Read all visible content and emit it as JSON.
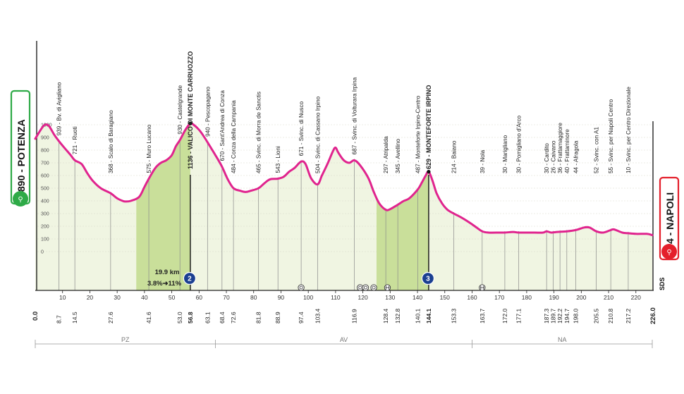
{
  "chart_data": {
    "type": "area",
    "x_unit": "km",
    "y_unit": "m",
    "xlim": [
      0,
      226
    ],
    "ylim": [
      0,
      1200
    ],
    "start": {
      "elevation": "890",
      "name": "POTENZA",
      "label": "890 - POTENZA"
    },
    "finish": {
      "elevation": "4",
      "name": "NAPOLI",
      "label": "4 - NAPOLI"
    },
    "finish_extra": "SDS",
    "y_ticks": [
      "1000",
      "900",
      "800",
      "700",
      "600",
      "500",
      "400",
      "300",
      "200",
      "100",
      "0"
    ],
    "x_ticks": [
      "10",
      "20",
      "30",
      "40",
      "50",
      "60",
      "70",
      "80",
      "90",
      "100",
      "110",
      "120",
      "130",
      "140",
      "150",
      "160",
      "170",
      "180",
      "190",
      "200",
      "210",
      "220"
    ],
    "x_start_label": "0.0",
    "x_end_label": "226.0",
    "profile": [
      [
        0,
        890
      ],
      [
        2,
        960
      ],
      [
        3.5,
        1000
      ],
      [
        5,
        990
      ],
      [
        7,
        920
      ],
      [
        8.7,
        870
      ],
      [
        11,
        810
      ],
      [
        13,
        760
      ],
      [
        14.5,
        720
      ],
      [
        17,
        690
      ],
      [
        19,
        620
      ],
      [
        21,
        560
      ],
      [
        24,
        500
      ],
      [
        27.6,
        460
      ],
      [
        30,
        420
      ],
      [
        32,
        400
      ],
      [
        33,
        395
      ],
      [
        35,
        400
      ],
      [
        38,
        430
      ],
      [
        40,
        510
      ],
      [
        41.6,
        575
      ],
      [
        44,
        660
      ],
      [
        46,
        700
      ],
      [
        48,
        720
      ],
      [
        50,
        760
      ],
      [
        51.5,
        830
      ],
      [
        53,
        880
      ],
      [
        55,
        960
      ],
      [
        56.8,
        1010
      ],
      [
        58,
        1000
      ],
      [
        60,
        960
      ],
      [
        62,
        900
      ],
      [
        64,
        830
      ],
      [
        66,
        760
      ],
      [
        68.4,
        670
      ],
      [
        70.5,
        570
      ],
      [
        72.6,
        500
      ],
      [
        75,
        480
      ],
      [
        77,
        470
      ],
      [
        79,
        480
      ],
      [
        81.8,
        500
      ],
      [
        84,
        540
      ],
      [
        86,
        570
      ],
      [
        88.9,
        575
      ],
      [
        91,
        590
      ],
      [
        93,
        630
      ],
      [
        95,
        660
      ],
      [
        97.4,
        710
      ],
      [
        99,
        690
      ],
      [
        101,
        580
      ],
      [
        103.4,
        530
      ],
      [
        105,
        600
      ],
      [
        107,
        690
      ],
      [
        109,
        790
      ],
      [
        110,
        820
      ],
      [
        111,
        780
      ],
      [
        113,
        720
      ],
      [
        115,
        700
      ],
      [
        116.9,
        720
      ],
      [
        119,
        680
      ],
      [
        122,
        580
      ],
      [
        124,
        470
      ],
      [
        126,
        380
      ],
      [
        128.4,
        330
      ],
      [
        130,
        335
      ],
      [
        132.8,
        370
      ],
      [
        135,
        400
      ],
      [
        137,
        420
      ],
      [
        140.1,
        490
      ],
      [
        141.5,
        540
      ],
      [
        143,
        600
      ],
      [
        144.1,
        630
      ],
      [
        145.5,
        560
      ],
      [
        147,
        460
      ],
      [
        149,
        380
      ],
      [
        151,
        330
      ],
      [
        153.3,
        300
      ],
      [
        156,
        270
      ],
      [
        159,
        230
      ],
      [
        161,
        200
      ],
      [
        163.7,
        160
      ],
      [
        166,
        150
      ],
      [
        170,
        150
      ],
      [
        172,
        150
      ],
      [
        175,
        155
      ],
      [
        177.1,
        150
      ],
      [
        180,
        150
      ],
      [
        183,
        150
      ],
      [
        186,
        150
      ],
      [
        187.3,
        160
      ],
      [
        189,
        150
      ],
      [
        191,
        155
      ],
      [
        194.7,
        160
      ],
      [
        198,
        170
      ],
      [
        201,
        190
      ],
      [
        203,
        190
      ],
      [
        205.5,
        160
      ],
      [
        208,
        150
      ],
      [
        210.8,
        170
      ],
      [
        212,
        175
      ],
      [
        215,
        150
      ],
      [
        217.2,
        145
      ],
      [
        220,
        140
      ],
      [
        224,
        140
      ],
      [
        226,
        130
      ]
    ],
    "distance_labels": [
      {
        "km": 8.7,
        "text": "8.7"
      },
      {
        "km": 14.5,
        "text": "14.5"
      },
      {
        "km": 27.6,
        "text": "27.6"
      },
      {
        "km": 41.6,
        "text": "41.6"
      },
      {
        "km": 53.0,
        "text": "53.0"
      },
      {
        "km": 56.8,
        "text": "56.8",
        "bold": true
      },
      {
        "km": 63.1,
        "text": "63.1"
      },
      {
        "km": 68.4,
        "text": "68.4"
      },
      {
        "km": 72.6,
        "text": "72.6"
      },
      {
        "km": 81.8,
        "text": "81.8"
      },
      {
        "km": 88.9,
        "text": "88.9"
      },
      {
        "km": 97.4,
        "text": "97.4"
      },
      {
        "km": 103.4,
        "text": "103.4"
      },
      {
        "km": 116.9,
        "text": "116.9"
      },
      {
        "km": 128.4,
        "text": "128.4"
      },
      {
        "km": 132.8,
        "text": "132.8"
      },
      {
        "km": 140.1,
        "text": "140.1"
      },
      {
        "km": 144.1,
        "text": "144.1",
        "bold": true
      },
      {
        "km": 153.3,
        "text": "153.3"
      },
      {
        "km": 163.7,
        "text": "163.7"
      },
      {
        "km": 172.0,
        "text": "172.0"
      },
      {
        "km": 177.1,
        "text": "177.1"
      },
      {
        "km": 187.3,
        "text": "187.3"
      },
      {
        "km": 189.7,
        "text": "189.7"
      },
      {
        "km": 192.2,
        "text": "192.2"
      },
      {
        "km": 194.7,
        "text": "194.7"
      },
      {
        "km": 198.0,
        "text": "198.0"
      },
      {
        "km": 205.5,
        "text": "205.5"
      },
      {
        "km": 210.8,
        "text": "210.8"
      },
      {
        "km": 217.2,
        "text": "217.2"
      }
    ],
    "places": [
      {
        "km": 8.7,
        "text": "939 - Bv. di Avigliano"
      },
      {
        "km": 14.5,
        "text": "721 - Ruoti"
      },
      {
        "km": 27.6,
        "text": "368 - Scalo di Baragiano"
      },
      {
        "km": 41.6,
        "text": "575 - Muro Lucano"
      },
      {
        "km": 53.0,
        "text": "930 - Castelgrande"
      },
      {
        "km": 56.8,
        "text": "1136 - VALICO DI MONTE CARRUOZZO",
        "bold": true
      },
      {
        "km": 63.1,
        "text": "940 - Pescopagano"
      },
      {
        "km": 68.4,
        "text": "670 - Sant'Andrea di Conza"
      },
      {
        "km": 72.6,
        "text": "484 - Conza della Campania"
      },
      {
        "km": 81.8,
        "text": "465 - Svinc. di Morra de Sanctis"
      },
      {
        "km": 88.9,
        "text": "543 - Lioni"
      },
      {
        "km": 97.4,
        "text": "671 - Svinc. di Nusco"
      },
      {
        "km": 103.4,
        "text": "504 - Svinc. di Cassano Irpino"
      },
      {
        "km": 116.9,
        "text": "687 - Svinc. di Volturara Irpina"
      },
      {
        "km": 128.4,
        "text": "297 - Atripalda"
      },
      {
        "km": 132.8,
        "text": "345 - Avellino"
      },
      {
        "km": 140.1,
        "text": "487 - Monteforte Irpino-Centro"
      },
      {
        "km": 144.1,
        "text": "629 - MONTEFORTE IRPINO",
        "bold": true
      },
      {
        "km": 153.3,
        "text": "214 - Baiano"
      },
      {
        "km": 163.7,
        "text": "39 - Nola"
      },
      {
        "km": 172.0,
        "text": "30 - Marigliano"
      },
      {
        "km": 177.1,
        "text": "30 - Pomigliano d'Arco"
      },
      {
        "km": 187.3,
        "text": "30 - Cardito"
      },
      {
        "km": 189.7,
        "text": "26 - Caivano"
      },
      {
        "km": 192.2,
        "text": "36 - Frattamaggiore"
      },
      {
        "km": 194.7,
        "text": "40 - Frattaminore"
      },
      {
        "km": 198.0,
        "text": "44 - Afragola"
      },
      {
        "km": 205.5,
        "text": "52 - Svinc. con A1"
      },
      {
        "km": 210.8,
        "text": "55 - Svinc. per Napoli Centro"
      },
      {
        "km": 217.2,
        "text": "10 - Svinc. per Centro Direzionale"
      }
    ],
    "climbs": [
      {
        "category": "2",
        "start_km": 37,
        "end_km": 56.8
      },
      {
        "category": "3",
        "start_km": 125,
        "end_km": 144.1
      }
    ],
    "climb_note": {
      "length": "19.9 km",
      "gradient": "3.8%➜11%"
    },
    "markers": [
      {
        "type": "intermediate",
        "km": 97.4
      },
      {
        "type": "intermediate",
        "km": 119
      },
      {
        "type": "intermediate",
        "km": 121
      },
      {
        "type": "intermediate",
        "km": 124
      },
      {
        "type": "railway",
        "km": 129
      },
      {
        "type": "railway",
        "km": 163.7
      }
    ],
    "provinces": [
      {
        "name": "PZ",
        "from_km": 0,
        "to_km": 66
      },
      {
        "name": "AV",
        "from_km": 66,
        "to_km": 160
      },
      {
        "name": "NA",
        "from_km": 160,
        "to_km": 226
      }
    ],
    "colors": {
      "profile_line": "#e0248e",
      "fill": "#f0f5e2",
      "climb_fill": "#c9df9a",
      "start_green": "#2eaa47",
      "finish_red": "#e41f2b",
      "climb_badge": "#1b3f91",
      "text": "#222222",
      "grid": "#d9dcc9"
    }
  }
}
